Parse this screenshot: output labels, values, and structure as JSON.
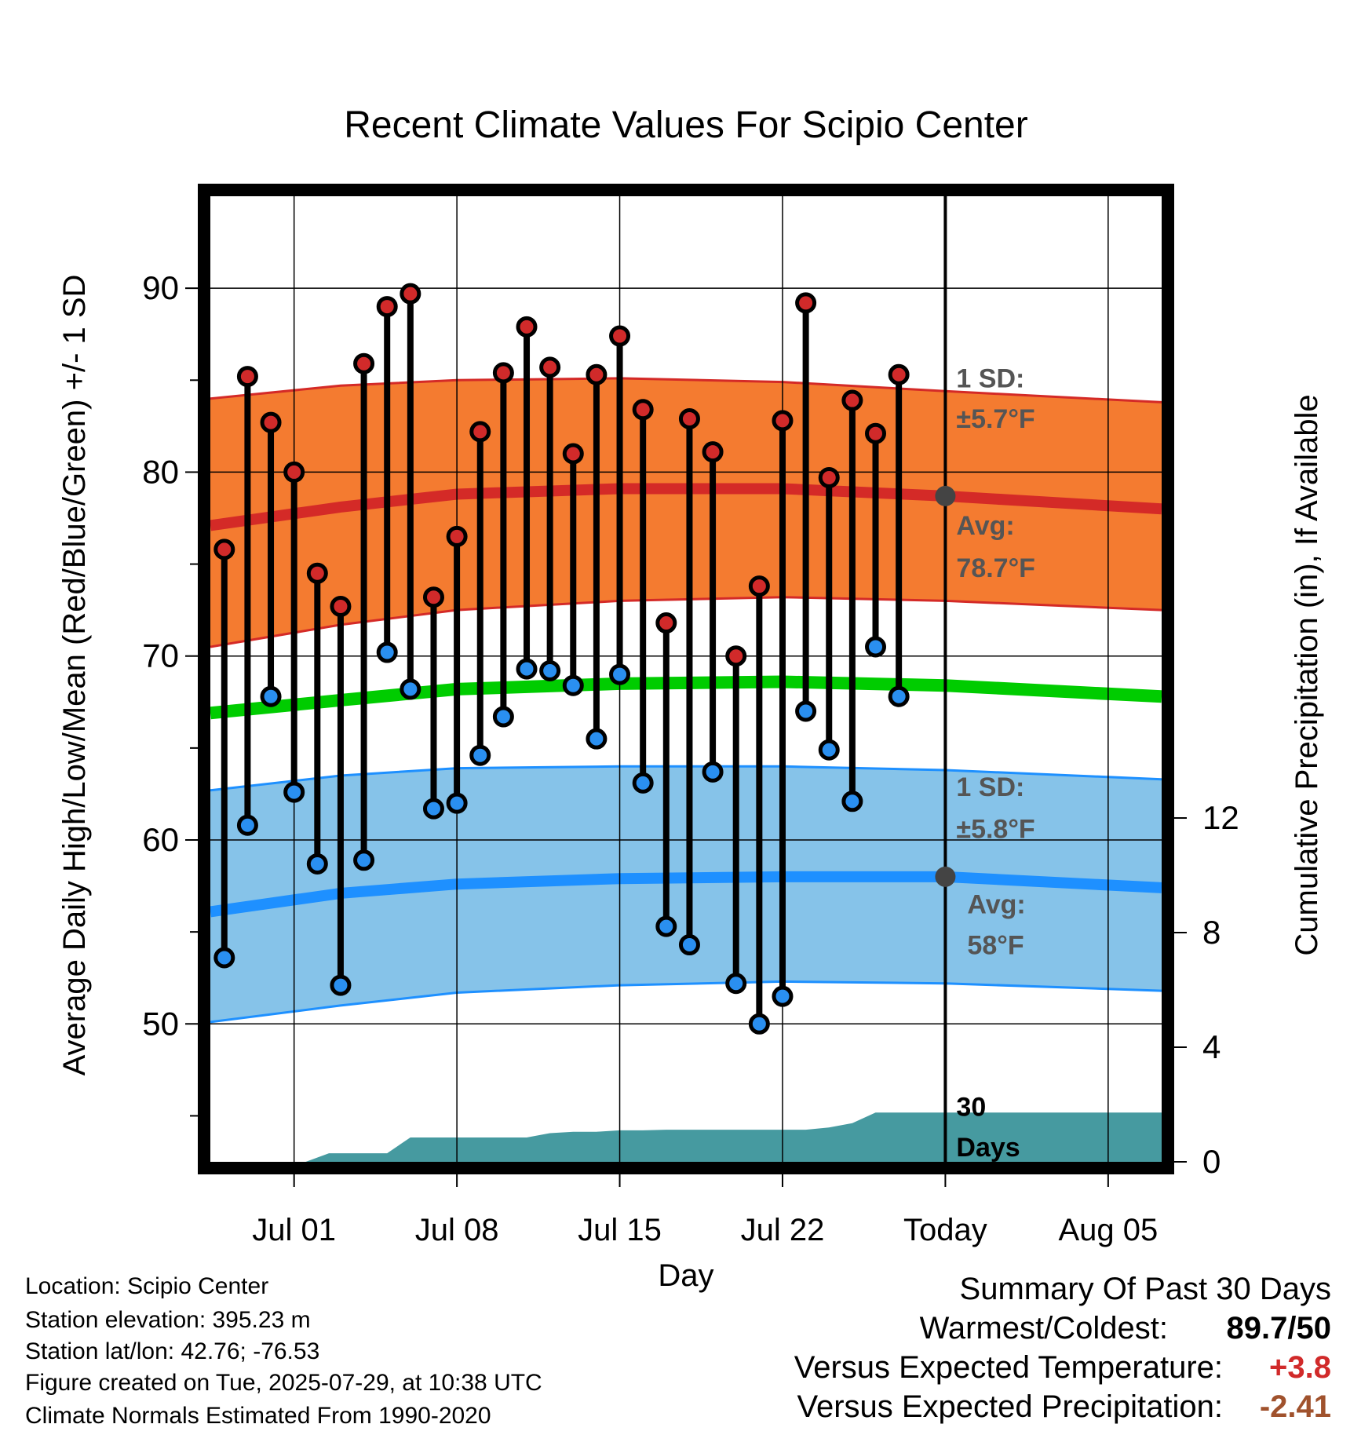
{
  "chart_data": {
    "type": "line",
    "title": "Recent Climate Values For Scipio Center",
    "xlabel": "Day",
    "ylabel": "Average Daily High/Low/Mean (Red/Blue/Green) +/- 1 SD",
    "ylabel_right": "Cumulative Precipitation (in), If Available",
    "x_tick_labels": [
      "Jul 01",
      "Jul 08",
      "Jul 15",
      "Jul 22",
      "Today",
      "Aug 05"
    ],
    "x_tick_days": [
      1,
      8,
      15,
      22,
      29,
      36
    ],
    "y_ticks": [
      50,
      60,
      70,
      80,
      90
    ],
    "y_range": [
      42.5,
      95
    ],
    "y_right_ticks": [
      0,
      4,
      8,
      12
    ],
    "y_right_range": [
      0,
      33.7
    ],
    "x_range": [
      -2.6,
      38.3
    ],
    "today_day": 29,
    "grid": true,
    "daily_highs_lows": {
      "days": [
        -2,
        -1,
        0,
        1,
        2,
        3,
        4,
        5,
        6,
        7,
        8,
        9,
        10,
        11,
        12,
        13,
        14,
        15,
        16,
        17,
        18,
        19,
        20,
        21,
        22,
        23,
        24,
        25,
        26,
        27,
        28
      ],
      "high": [
        75.8,
        85.2,
        82.7,
        80.0,
        74.5,
        72.7,
        85.9,
        89.0,
        89.7,
        73.2,
        76.5,
        82.2,
        85.4,
        87.9,
        85.7,
        81.0,
        85.3,
        87.4,
        83.4,
        71.8,
        82.9,
        81.1,
        70.0,
        73.8,
        82.8,
        89.2,
        79.7,
        83.9,
        82.1,
        85.3,
        null
      ],
      "low": [
        53.6,
        60.8,
        67.8,
        62.6,
        58.7,
        52.1,
        58.9,
        70.2,
        68.2,
        61.7,
        62.0,
        64.6,
        66.7,
        69.3,
        69.2,
        68.4,
        65.5,
        69.0,
        63.1,
        55.3,
        54.3,
        63.7,
        52.2,
        50.0,
        51.5,
        67.0,
        64.9,
        62.1,
        70.5,
        67.8,
        null
      ]
    },
    "normals": {
      "days": [
        -2.6,
        3,
        8,
        15,
        22,
        29,
        38.3
      ],
      "high_avg": [
        77.1,
        78.1,
        78.8,
        79.1,
        79.1,
        78.7,
        78.0
      ],
      "high_upper": [
        84.0,
        84.7,
        85.0,
        85.1,
        84.9,
        84.4,
        83.8
      ],
      "high_lower": [
        70.5,
        71.7,
        72.5,
        73.0,
        73.2,
        73.0,
        72.5
      ],
      "mean_avg": [
        66.9,
        67.6,
        68.2,
        68.5,
        68.6,
        68.4,
        67.8
      ],
      "low_avg": [
        56.1,
        57.1,
        57.6,
        57.9,
        58.0,
        58.0,
        57.4
      ],
      "low_upper": [
        62.7,
        63.5,
        63.9,
        64.0,
        64.0,
        63.8,
        63.3
      ],
      "low_lower": [
        50.1,
        51.0,
        51.7,
        52.1,
        52.3,
        52.2,
        51.8
      ]
    },
    "precipitation": {
      "days": [
        -2.6,
        1.5,
        2.5,
        5,
        6,
        7,
        8,
        10,
        11,
        12,
        13,
        14,
        15,
        16,
        17,
        19,
        21,
        23,
        24,
        25,
        26,
        27,
        29,
        38.3
      ],
      "cumulative": [
        0,
        0,
        0.3,
        0.3,
        0.85,
        0.85,
        0.85,
        0.85,
        0.85,
        1.0,
        1.05,
        1.05,
        1.1,
        1.1,
        1.12,
        1.12,
        1.12,
        1.12,
        1.2,
        1.35,
        1.72,
        1.72,
        1.72,
        1.72
      ]
    },
    "annotations": {
      "high_sd_head": "1 SD:",
      "high_sd_value": "±5.7°F",
      "high_avg_head": "Avg:",
      "high_avg_value": "78.7°F",
      "low_sd_head": "1 SD:",
      "low_sd_value": "±5.8°F",
      "low_avg_head": "Avg:",
      "low_avg_value": "58°F",
      "days_head": "30",
      "days_value": "Days"
    },
    "colors": {
      "high_band": "#f47b30",
      "high_line": "#d42a27",
      "mean_line": "#00cc00",
      "low_band": "#86c3e9",
      "low_line": "#1e90ff",
      "precip": "#469aa0",
      "high_dot": "#d12a2a",
      "low_dot": "#2a8ff0",
      "annotation": "#555555"
    }
  },
  "footer": {
    "location": "Location: Scipio Center",
    "elevation": "Station elevation: 395.23 m",
    "latlon": "Station lat/lon: 42.76; -76.53",
    "created": "Figure created on Tue, 2025-07-29, at 10:38 UTC",
    "normals": "Climate Normals Estimated From 1990-2020"
  },
  "summary": {
    "heading": "Summary Of Past 30 Days",
    "warmest_label": "Warmest/Coldest:",
    "warmest_value": "89.7/50",
    "temp_label": "Versus Expected Temperature:",
    "temp_value": "+3.8",
    "temp_color": "#d12a2a",
    "precip_label": "Versus Expected Precipitation:",
    "precip_value": "-2.41",
    "precip_color": "#a0522d"
  }
}
